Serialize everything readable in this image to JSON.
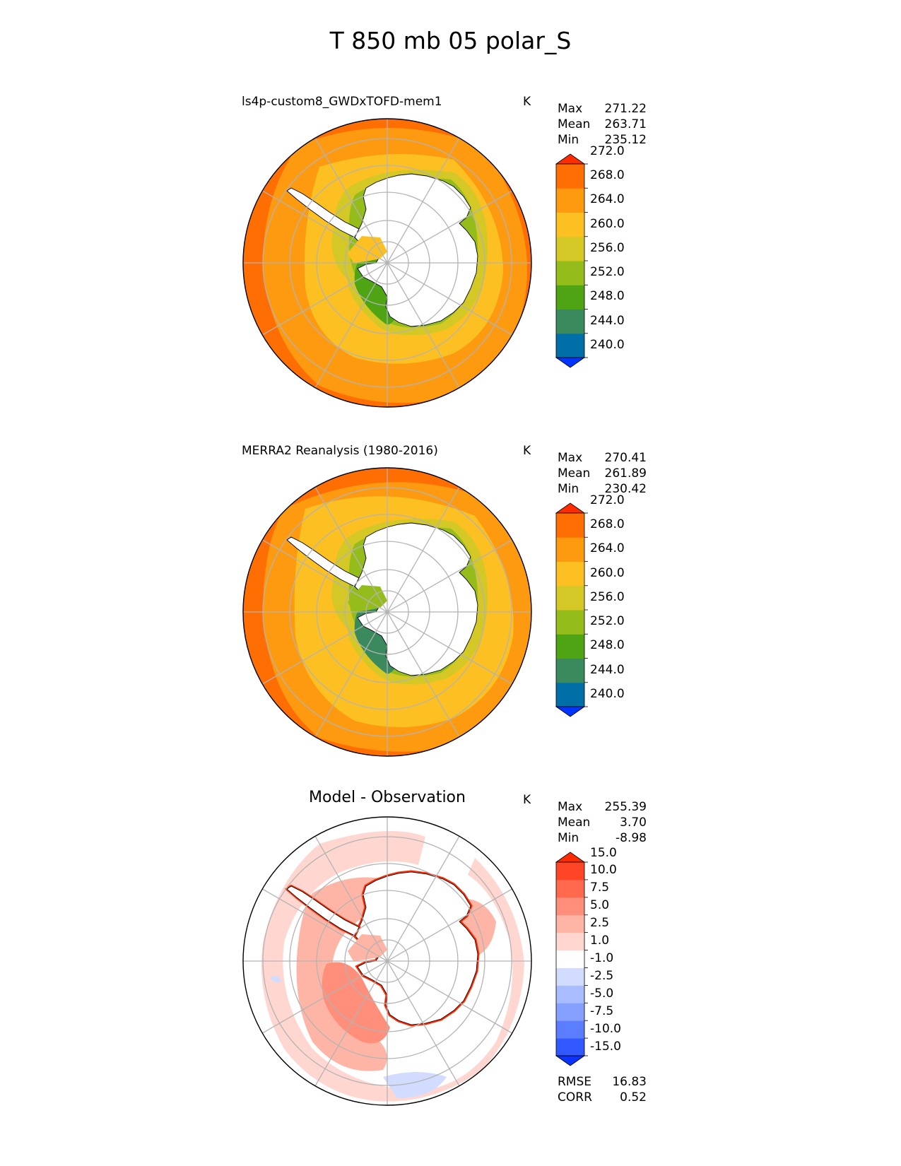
{
  "suptitle": "T 850 mb 05 polar_S",
  "panels": [
    {
      "id": "model",
      "title": "ls4p-custom8_GWDxTOFD-mem1",
      "units": "K",
      "stats": [
        {
          "label": "Max",
          "value": "271.22"
        },
        {
          "label": "Mean",
          "value": "263.71"
        },
        {
          "label": "Min",
          "value": "235.12"
        }
      ],
      "colorbar": {
        "levels": [
          "240.0",
          "244.0",
          "248.0",
          "252.0",
          "256.0",
          "260.0",
          "264.0",
          "268.0",
          "272.0"
        ],
        "colors": [
          "#0035ff",
          "#006fa8",
          "#3a8a5e",
          "#4ea413",
          "#94bd1c",
          "#d3c826",
          "#fdc022",
          "#fe9a10",
          "#ff6e02",
          "#ff2c00"
        ]
      },
      "field_colors": {
        "ocean_outer": "#ff6e02",
        "ocean_mid": "#fe9a10",
        "ocean_inner": "#fdc022",
        "coast_band": "#d3c826",
        "coast_inner": "#94bd1c",
        "coast_edge": "#4ea413"
      }
    },
    {
      "id": "obs",
      "title": "MERRA2 Reanalysis (1980-2016)",
      "units": "K",
      "stats": [
        {
          "label": "Max",
          "value": "270.41"
        },
        {
          "label": "Mean",
          "value": "261.89"
        },
        {
          "label": "Min",
          "value": "230.42"
        }
      ],
      "colorbar": {
        "levels": [
          "240.0",
          "244.0",
          "248.0",
          "252.0",
          "256.0",
          "260.0",
          "264.0",
          "268.0",
          "272.0"
        ],
        "colors": [
          "#0035ff",
          "#006fa8",
          "#3a8a5e",
          "#4ea413",
          "#94bd1c",
          "#d3c826",
          "#fdc022",
          "#fe9a10",
          "#ff6e02",
          "#ff2c00"
        ]
      },
      "field_colors": {
        "ocean_outer": "#ff6e02",
        "ocean_mid": "#fe9a10",
        "ocean_inner": "#fdc022",
        "coast_band": "#d3c826",
        "coast_inner": "#94bd1c",
        "coast_edge": "#3a8a5e"
      }
    },
    {
      "id": "diff",
      "title": "Model - Observation",
      "units": "K",
      "stats": [
        {
          "label": "Max",
          "value": "255.39"
        },
        {
          "label": "Mean",
          "value": "3.70"
        },
        {
          "label": "Min",
          "value": "-8.98"
        }
      ],
      "colorbar": {
        "levels": [
          "-15.0",
          "-10.0",
          "-7.5",
          "-5.0",
          "-2.5",
          "-1.0",
          "1.0",
          "2.5",
          "5.0",
          "7.5",
          "10.0",
          "15.0"
        ],
        "colors": [
          "#0a33ff",
          "#3158ff",
          "#5b7dff",
          "#85a0ff",
          "#a9bcff",
          "#d2dcff",
          "#ffffff",
          "#ffd7d0",
          "#ffb5a6",
          "#ff8f7a",
          "#ff6a4f",
          "#ff4526",
          "#ff2a00"
        ]
      },
      "field_colors": {
        "background": "#ffffff",
        "light": "#ffd7d0",
        "medium": "#ffb5a6",
        "strong": "#ff8f7a",
        "edge": "#ff2a00",
        "negative": "#d2dcff"
      },
      "footer_stats": [
        {
          "label": "RMSE",
          "value": "16.83"
        },
        {
          "label": "CORR",
          "value": "0.52"
        }
      ]
    }
  ],
  "chart_data": [
    {
      "type": "heatmap",
      "title": "ls4p-custom8_GWDxTOFD-mem1",
      "projection": "south polar stereographic",
      "units": "K",
      "stats": {
        "max": 271.22,
        "mean": 263.71,
        "min": 235.12
      },
      "colorbar_levels": [
        240,
        244,
        248,
        252,
        256,
        260,
        264,
        268,
        272
      ],
      "extend": "both"
    },
    {
      "type": "heatmap",
      "title": "MERRA2 Reanalysis (1980-2016)",
      "projection": "south polar stereographic",
      "units": "K",
      "stats": {
        "max": 270.41,
        "mean": 261.89,
        "min": 230.42
      },
      "colorbar_levels": [
        240,
        244,
        248,
        252,
        256,
        260,
        264,
        268,
        272
      ],
      "extend": "both"
    },
    {
      "type": "heatmap",
      "title": "Model - Observation",
      "projection": "south polar stereographic",
      "units": "K",
      "stats": {
        "max": 255.39,
        "mean": 3.7,
        "min": -8.98,
        "rmse": 16.83,
        "corr": 0.52
      },
      "colorbar_levels": [
        -15.0,
        -10.0,
        -7.5,
        -5.0,
        -2.5,
        -1.0,
        1.0,
        2.5,
        5.0,
        7.5,
        10.0,
        15.0
      ],
      "extend": "both"
    }
  ]
}
